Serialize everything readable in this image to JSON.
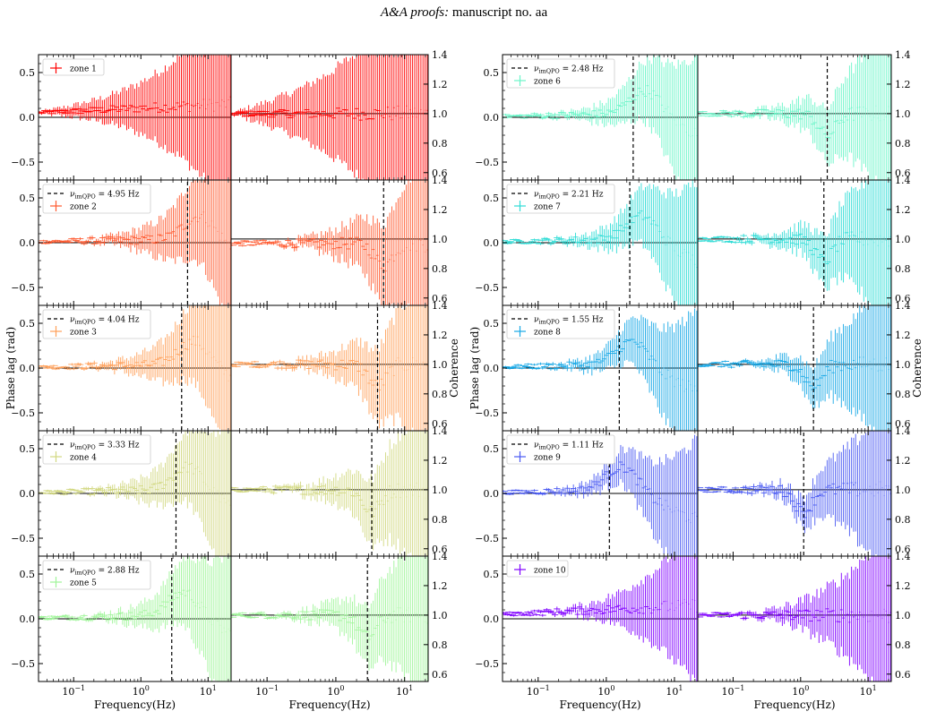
{
  "header": {
    "italic": "A&A proofs:",
    "rest": "manuscript no. aa"
  },
  "chart_data": {
    "type": "scatter",
    "title": "",
    "xlabel": "Frequency(Hz)",
    "ylabel_left": "Phase lag (rad)",
    "ylabel_right": "Coherence",
    "xscale": "log",
    "xlim": [
      0.03,
      22
    ],
    "ylim_left": [
      -0.7,
      0.7
    ],
    "ylim_right": [
      0.55,
      1.4
    ],
    "xticks": [
      {
        "label": "10",
        "sup": "−1"
      },
      {
        "label": "10",
        "sup": "0"
      },
      {
        "label": "10",
        "sup": "1"
      }
    ],
    "yticks_left": [
      "0.5",
      "0.0",
      "−0.5"
    ],
    "yticks_right": [
      "1.4",
      "1.2",
      "1.0",
      "0.8",
      "0.6"
    ],
    "legend_qpo_prefix": "ν",
    "legend_qpo_sub": "imQPO",
    "legend_qpo_unit": "Hz",
    "legend_position": "upper-left",
    "zones": [
      {
        "name": "zone 1",
        "color": "#ff0000",
        "qpo": null,
        "qpo_label": ""
      },
      {
        "name": "zone 2",
        "color": "#ff5a30",
        "qpo": 4.95,
        "qpo_label": "4.95"
      },
      {
        "name": "zone 3",
        "color": "#ffa05a",
        "qpo": 4.04,
        "qpo_label": "4.04"
      },
      {
        "name": "zone 4",
        "color": "#d2d882",
        "qpo": 3.33,
        "qpo_label": "3.33"
      },
      {
        "name": "zone 5",
        "color": "#a0f59a",
        "qpo": 2.88,
        "qpo_label": "2.88"
      },
      {
        "name": "zone 6",
        "color": "#6af5c8",
        "qpo": 2.48,
        "qpo_label": "2.48"
      },
      {
        "name": "zone 7",
        "color": "#30dcd6",
        "qpo": 2.21,
        "qpo_label": "2.21"
      },
      {
        "name": "zone 8",
        "color": "#18a8e6",
        "qpo": 1.55,
        "qpo_label": "1.55"
      },
      {
        "name": "zone 9",
        "color": "#4a5af2",
        "qpo": 1.11,
        "qpo_label": "1.11"
      },
      {
        "name": "zone 10",
        "color": "#8000ff",
        "qpo": null,
        "qpo_label": ""
      }
    ]
  }
}
